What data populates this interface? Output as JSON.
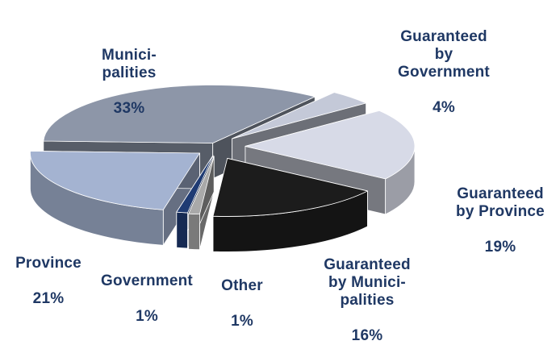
{
  "chart_data": {
    "type": "pie",
    "style": "3d-exploded",
    "legend": "none",
    "slices": [
      {
        "name": "Munici-\npalities",
        "value": 33,
        "label": "33%",
        "color": "#8d96a8"
      },
      {
        "name": "Guaranteed\nby\nGovernment",
        "value": 4,
        "label": "4%",
        "color": "#c4c9d8"
      },
      {
        "name": "Guaranteed\nby Province",
        "value": 19,
        "label": "19%",
        "color": "#d7dae7"
      },
      {
        "name": "Guaranteed\nby Munici-\npalities",
        "value": 16,
        "label": "16%",
        "color": "#1c1c1c"
      },
      {
        "name": "Other",
        "value": 1,
        "label": "1%",
        "color": "#a9a9a9"
      },
      {
        "name": "Government",
        "value": 1,
        "label": "1%",
        "color": "#1f3b73"
      },
      {
        "name": "Province",
        "value": 21,
        "label": "21%",
        "color": "#a4b3d1"
      }
    ]
  }
}
